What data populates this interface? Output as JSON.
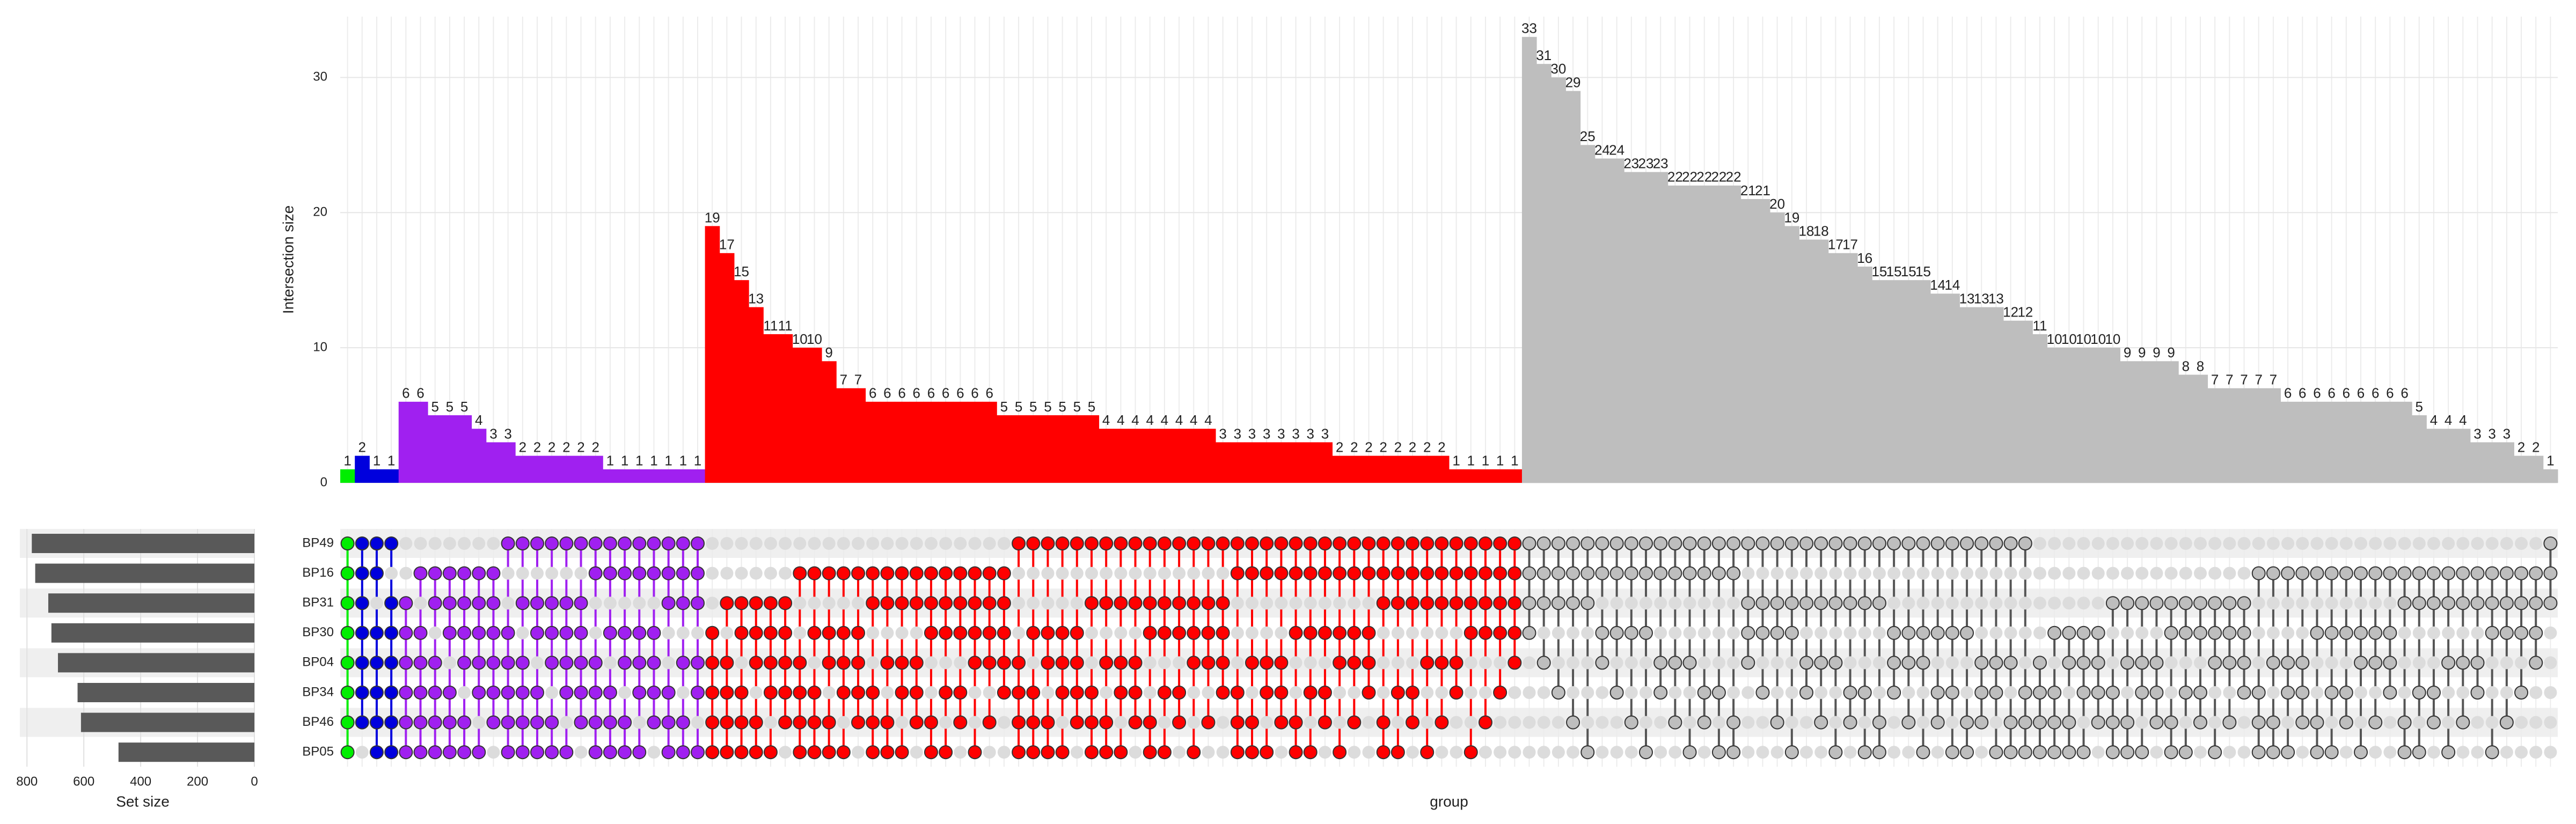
{
  "chart_data": {
    "type": "upset",
    "ylabel": "Intersection size",
    "xlabel": "group",
    "set_size_label": "Set size",
    "ylim": [
      0,
      34.5
    ],
    "yticks": [
      0,
      10,
      20,
      30
    ],
    "sets": [
      "BP49",
      "BP16",
      "BP31",
      "BP30",
      "BP04",
      "BP34",
      "BP46",
      "BP05"
    ],
    "set_sizes": [
      783,
      771,
      725,
      714,
      691,
      622,
      610,
      478
    ],
    "set_size_color": "#595959",
    "set_size_lim": [
      0,
      825
    ],
    "set_size_ticks": [
      800,
      600,
      400,
      200,
      0
    ],
    "grid": true,
    "series": [
      {
        "color": "#00ee00",
        "values": [
          1
        ],
        "sets": [
          "11111111"
        ]
      },
      {
        "color": "#0000dd",
        "values": [
          2,
          1,
          1
        ],
        "sets": [
          "11111110",
          "11011111",
          "10111111"
        ]
      },
      {
        "color": "#a020f0",
        "values": [
          6,
          6,
          5,
          5,
          5,
          4,
          3,
          3,
          2,
          2,
          2,
          2,
          2,
          2,
          1,
          1,
          1,
          1,
          1,
          1,
          1
        ],
        "sets": [
          "00111111",
          "01011111",
          "01101111",
          "01110111",
          "01111011",
          "01111101",
          "01111110",
          "10011111",
          "10101111",
          "10110111",
          "10111011",
          "10111101",
          "10111110",
          "11001111",
          "11010111",
          "11011011",
          "11011101",
          "11011110",
          "11100111",
          "11101011",
          "11101101"
        ]
      },
      {
        "color": "#ff0000",
        "values": [
          19,
          17,
          15,
          13,
          11,
          11,
          10,
          10,
          9,
          7,
          7,
          6,
          6,
          6,
          6,
          6,
          6,
          6,
          6,
          6,
          5,
          5,
          5,
          5,
          5,
          5,
          5,
          4,
          4,
          4,
          4,
          4,
          4,
          4,
          4,
          3,
          3,
          3,
          3,
          3,
          3,
          3,
          3,
          2,
          2,
          2,
          2,
          2,
          2,
          2,
          2,
          1,
          1,
          1,
          1,
          1
        ],
        "sets": [
          "00011111",
          "00101111",
          "00110111",
          "00111011",
          "00111101",
          "00111110",
          "01001111",
          "01010111",
          "01011011",
          "01011101",
          "01011110",
          "01100111",
          "01101011",
          "01101101",
          "01101110",
          "01110011",
          "01110101",
          "01110110",
          "01111001",
          "01111010",
          "01111100",
          "10001111",
          "10010111",
          "10011011",
          "10011101",
          "10011110",
          "10100111",
          "10101011",
          "10101101",
          "10101110",
          "10110011",
          "10110101",
          "10110110",
          "10111001",
          "10111010",
          "10111100",
          "11000111",
          "11001011",
          "11001101",
          "11001110",
          "11010011",
          "11010101",
          "11010110",
          "11011001",
          "11011010",
          "11011100",
          "11100011",
          "11100101",
          "11100110",
          "11101001",
          "11101010",
          "11101100",
          "11110001",
          "11110010",
          "11110100",
          "11111000"
        ]
      },
      {
        "color": "#bebebe",
        "values": [
          33,
          31,
          30,
          29,
          25,
          24,
          24,
          23,
          23,
          23,
          22,
          22,
          22,
          22,
          22,
          21,
          21,
          20,
          19,
          18,
          18,
          17,
          17,
          16,
          15,
          15,
          15,
          15,
          14,
          14,
          13,
          13,
          13,
          12,
          12,
          11,
          10,
          10,
          10,
          10,
          10,
          9,
          9,
          9,
          9,
          8,
          8,
          7,
          7,
          7,
          7,
          7,
          6,
          6,
          6,
          6,
          6,
          6,
          6,
          6,
          6,
          5,
          4,
          4,
          4,
          3,
          3,
          3,
          2,
          2,
          1
        ],
        "sets": [
          "11110000",
          "11101000",
          "11100100",
          "11100010",
          "11100001",
          "11011000",
          "11010100",
          "11010010",
          "11010001",
          "11001100",
          "11001010",
          "11001001",
          "11000110",
          "11000101",
          "11000011",
          "10111000",
          "10110100",
          "10110010",
          "10110001",
          "10101100",
          "10101010",
          "10101001",
          "10100110",
          "10100101",
          "10100011",
          "10011100",
          "10011010",
          "10011001",
          "10010110",
          "10010101",
          "10010011",
          "10001110",
          "10001101",
          "10001011",
          "10000111",
          "00001111",
          "00010111",
          "00011011",
          "00011101",
          "00011110",
          "00100111",
          "00101011",
          "00101101",
          "00101110",
          "00110011",
          "00110101",
          "00110110",
          "00111001",
          "00111010",
          "00111100",
          "01000111",
          "01001011",
          "01001101",
          "01001110",
          "01010011",
          "01010101",
          "01010110",
          "01011001",
          "01011010",
          "01011100",
          "01100011",
          "01100101",
          "01100110",
          "01101001",
          "01101010",
          "01101100",
          "01110001",
          "01110010",
          "01110100",
          "01111000",
          "11100000"
        ]
      }
    ]
  }
}
